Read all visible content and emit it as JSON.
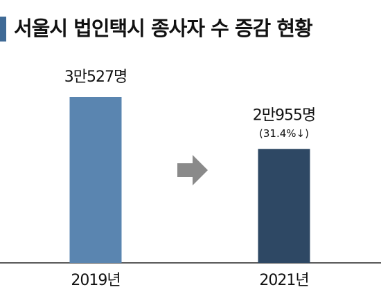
{
  "chart_data": {
    "type": "bar",
    "title": "서울시 법인택시 종사자 수 증감 현황",
    "categories": [
      "2019년",
      "2021년"
    ],
    "values": [
      30527,
      20955
    ],
    "value_labels": [
      "3만527명",
      "2만955명"
    ],
    "colors": [
      "#5a85b0",
      "#2e4864"
    ],
    "annotation": "(31.4%↓)"
  }
}
